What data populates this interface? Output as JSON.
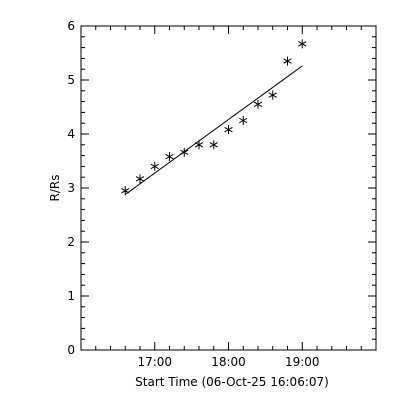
{
  "chart_data": {
    "type": "scatter",
    "title": "",
    "xlabel": "Start Time (06-Oct-25 16:06:07)",
    "ylabel": "R/Rs",
    "x_tick_labels": [
      "17:00",
      "18:00",
      "19:00"
    ],
    "x_tick_values_min": [
      54,
      114,
      174
    ],
    "x_range_min": [
      -6,
      234
    ],
    "y_tick_labels": [
      "0",
      "1",
      "2",
      "3",
      "4",
      "5",
      "6"
    ],
    "y_range": [
      0,
      6
    ],
    "grid": false,
    "legend": "none",
    "series": [
      {
        "marker": "asterisk",
        "x_min": [
          30,
          42,
          54,
          66,
          78,
          90,
          102,
          114,
          126,
          138,
          150,
          162,
          174
        ],
        "y": [
          2.95,
          3.17,
          3.4,
          3.58,
          3.66,
          3.8,
          3.8,
          4.08,
          4.25,
          4.55,
          4.72,
          5.35,
          5.67
        ]
      }
    ],
    "fit_line": {
      "x_min": [
        30,
        174
      ],
      "y": [
        2.88,
        5.26
      ]
    },
    "colors": {
      "foreground": "#000000",
      "background": "#ffffff"
    }
  }
}
